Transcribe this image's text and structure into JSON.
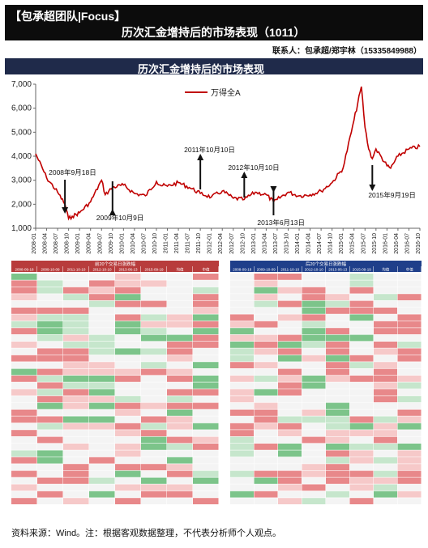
{
  "header": {
    "brand": "【包承超团队|Focus】",
    "title": "历次汇金增持后的市场表现（1011）",
    "contact": "联系人：包承超/郑宇林（15335849988）"
  },
  "chart_banner": "历次汇金增持后的市场表现",
  "footnote": "资料来源：Wind。注：根据客观数据整理，不代表分析师个人观点。",
  "chart_data": {
    "type": "line",
    "title": "",
    "xlabel": "",
    "ylabel": "",
    "ylim": [
      1000,
      7000
    ],
    "yticks": [
      1000,
      2000,
      3000,
      4000,
      5000,
      6000,
      7000
    ],
    "ytick_labels": [
      "1,000",
      "2,000",
      "3,000",
      "4,000",
      "5,000",
      "6,000",
      "7,000"
    ],
    "xtick_labels": [
      "2008-01",
      "2008-04",
      "2008-07",
      "2008-10",
      "2009-01",
      "2009-04",
      "2009-07",
      "2009-10",
      "2010-01",
      "2010-04",
      "2010-07",
      "2010-10",
      "2011-01",
      "2011-04",
      "2011-07",
      "2011-10",
      "2012-01",
      "2012-04",
      "2012-07",
      "2012-10",
      "2013-01",
      "2013-04",
      "2013-07",
      "2013-10",
      "2014-01",
      "2014-04",
      "2014-07",
      "2014-10",
      "2015-01",
      "2015-04",
      "2015-07",
      "2015-10",
      "2016-01",
      "2016-04",
      "2016-07",
      "2016-10"
    ],
    "legend": "top-center",
    "series": [
      {
        "name": "万得全A",
        "color": "#c00000",
        "x": [
          "2008-01",
          "2008-04",
          "2008-07",
          "2008-09",
          "2008-10",
          "2008-11",
          "2009-01",
          "2009-04",
          "2009-07",
          "2009-08",
          "2009-10",
          "2010-01",
          "2010-04",
          "2010-07",
          "2010-10",
          "2010-11",
          "2011-01",
          "2011-04",
          "2011-07",
          "2011-10",
          "2012-01",
          "2012-04",
          "2012-07",
          "2012-10",
          "2013-01",
          "2013-04",
          "2013-06",
          "2013-07",
          "2013-10",
          "2014-01",
          "2014-04",
          "2014-07",
          "2014-10",
          "2015-01",
          "2015-04",
          "2015-06",
          "2015-07",
          "2015-08",
          "2015-09",
          "2015-10",
          "2016-01",
          "2016-02",
          "2016-04",
          "2016-07",
          "2016-10"
        ],
        "values": [
          4100,
          3100,
          2500,
          2000,
          1400,
          1500,
          1650,
          2100,
          3000,
          2400,
          2700,
          2800,
          2450,
          2350,
          2950,
          2800,
          2750,
          2900,
          2700,
          2450,
          2300,
          2550,
          2250,
          2200,
          2500,
          2400,
          2100,
          2200,
          2500,
          2350,
          2400,
          2550,
          2900,
          3500,
          5500,
          6900,
          5200,
          4300,
          3900,
          4300,
          3600,
          3500,
          4000,
          4300,
          4400
        ]
      }
    ],
    "annotations": [
      {
        "text": "2008年9月18日",
        "x": "2008-09",
        "arrow": "down"
      },
      {
        "text": "2009年10月9日",
        "x": "2009-10",
        "arrow": "up"
      },
      {
        "text": "2011年10月10日",
        "x": "2011-10",
        "arrow": "up"
      },
      {
        "text": "2012年10月10日",
        "x": "2012-10",
        "arrow": "up"
      },
      {
        "text": "2013年6月13日",
        "x": "2013-06",
        "arrow": "down"
      },
      {
        "text": "2015年9月19日",
        "x": "2015-09",
        "arrow": "down"
      }
    ]
  },
  "tables": {
    "left": {
      "banner": "前20个交易日涨跌幅",
      "header_color": "#b83c3c",
      "columns": [
        "2008-09-18",
        "2009-10-09",
        "2011-10-10",
        "2012-10-10",
        "2013-06-13",
        "2015-09-19",
        "均值",
        "中值"
      ]
    },
    "right": {
      "banner": "后20个交易日涨跌幅",
      "header_color": "#1f3f8a",
      "columns": [
        "2008-09-18",
        "2009-10-09",
        "2011-10-10",
        "2012-10-10",
        "2013-06-13",
        "2015-09-19",
        "均值",
        "中值"
      ]
    },
    "legend_colors": {
      "up": "#e8888a",
      "down": "#7cc48a",
      "neutral": "#f4f4f4"
    }
  }
}
